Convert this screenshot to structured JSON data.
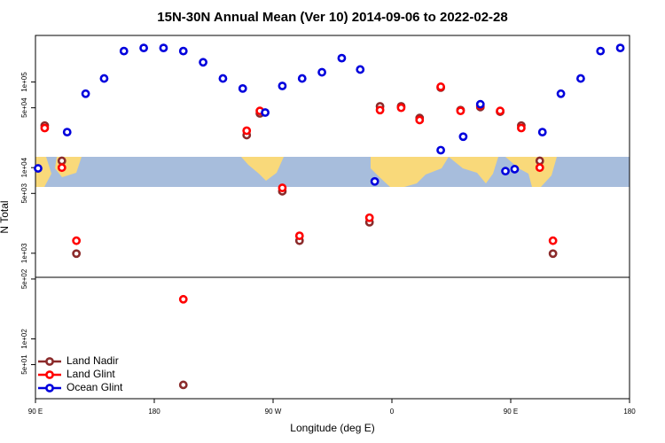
{
  "chart_data": {
    "type": "scatter",
    "title": "15N-30N Annual Mean (Ver 10)   2014-09-06 to 2022-02-28",
    "x_label": "Longitude (deg E)",
    "y_label": "N Total",
    "log_y": true,
    "legend": "bottom-left",
    "xlim": [
      90,
      540
    ],
    "xticks": [
      {
        "value": 90,
        "label": "90 E"
      },
      180,
      {
        "value": 270,
        "label": "90 W"
      },
      {
        "value": 360,
        "label": "0"
      },
      {
        "value": 450,
        "label": "90 E"
      },
      {
        "value": 540,
        "label": "180"
      }
    ],
    "ylim": [
      20,
      350000
    ],
    "yticks": [
      {
        "value": 50,
        "label": "5e+01"
      },
      {
        "value": 100,
        "label": "1e+02"
      },
      {
        "value": 500,
        "label": "5e+02"
      },
      {
        "value": 1000,
        "label": "1e+03"
      },
      {
        "value": 5000,
        "label": "5e+03"
      },
      {
        "value": 10000,
        "label": "1e+04"
      },
      {
        "value": 50000,
        "label": "5e+04"
      },
      {
        "value": 100000,
        "label": "1e+05"
      }
    ],
    "series": [
      {
        "name": "Land Nadir",
        "color": "#8b2b2b",
        "x": [
          97,
          110,
          121,
          202,
          250,
          260,
          277,
          290,
          343,
          351,
          367,
          381,
          397,
          412,
          427,
          442,
          458,
          472,
          482
        ],
        "values": [
          31000,
          12000,
          990,
          29,
          24000,
          43000,
          5300,
          1400,
          2300,
          52000,
          52000,
          38000,
          86000,
          47000,
          51000,
          45000,
          31000,
          12000,
          990
        ]
      },
      {
        "name": "Land Glint",
        "color": "#ff0000",
        "x": [
          97,
          110,
          121,
          202,
          250,
          260,
          277,
          290,
          343,
          351,
          367,
          381,
          397,
          412,
          427,
          442,
          458,
          472,
          482
        ],
        "values": [
          29000,
          10000,
          1400,
          290,
          27000,
          46000,
          5800,
          1600,
          2600,
          47000,
          50000,
          36000,
          88000,
          46000,
          53000,
          46000,
          29000,
          10000,
          1400
        ]
      },
      {
        "name": "Ocean Glint",
        "color": "#0000dd",
        "x": [
          92,
          114,
          128,
          142,
          157,
          172,
          187,
          202,
          217,
          232,
          247,
          264,
          277,
          292,
          307,
          322,
          336,
          347,
          397,
          414,
          427,
          446,
          453,
          474,
          488,
          503,
          518,
          533
        ],
        "values": [
          9800,
          26000,
          73000,
          110000,
          230000,
          250000,
          250000,
          230000,
          170000,
          110000,
          84000,
          44000,
          90000,
          110000,
          130000,
          190000,
          140000,
          6900,
          16000,
          23000,
          55000,
          9100,
          9600,
          26000,
          73000,
          110000,
          230000,
          250000
        ]
      }
    ]
  }
}
